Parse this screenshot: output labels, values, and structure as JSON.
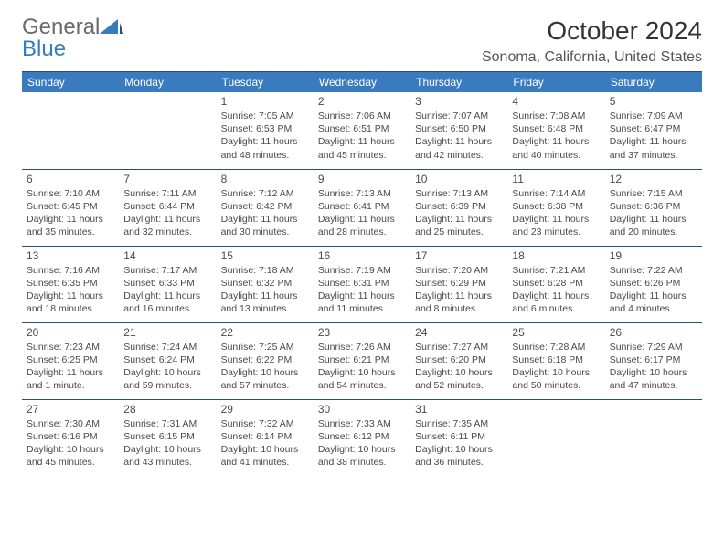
{
  "logo": {
    "text_general": "General",
    "text_blue": "Blue"
  },
  "title": "October 2024",
  "location": "Sonoma, California, United States",
  "colors": {
    "header_bg": "#3a7bbf",
    "border": "#264f7a",
    "text": "#4a4a4a",
    "title": "#333333",
    "location": "#555555"
  },
  "day_headers": [
    "Sunday",
    "Monday",
    "Tuesday",
    "Wednesday",
    "Thursday",
    "Friday",
    "Saturday"
  ],
  "weeks": [
    [
      null,
      null,
      {
        "n": "1",
        "sr": "7:05 AM",
        "ss": "6:53 PM",
        "dl": "11 hours and 48 minutes."
      },
      {
        "n": "2",
        "sr": "7:06 AM",
        "ss": "6:51 PM",
        "dl": "11 hours and 45 minutes."
      },
      {
        "n": "3",
        "sr": "7:07 AM",
        "ss": "6:50 PM",
        "dl": "11 hours and 42 minutes."
      },
      {
        "n": "4",
        "sr": "7:08 AM",
        "ss": "6:48 PM",
        "dl": "11 hours and 40 minutes."
      },
      {
        "n": "5",
        "sr": "7:09 AM",
        "ss": "6:47 PM",
        "dl": "11 hours and 37 minutes."
      }
    ],
    [
      {
        "n": "6",
        "sr": "7:10 AM",
        "ss": "6:45 PM",
        "dl": "11 hours and 35 minutes."
      },
      {
        "n": "7",
        "sr": "7:11 AM",
        "ss": "6:44 PM",
        "dl": "11 hours and 32 minutes."
      },
      {
        "n": "8",
        "sr": "7:12 AM",
        "ss": "6:42 PM",
        "dl": "11 hours and 30 minutes."
      },
      {
        "n": "9",
        "sr": "7:13 AM",
        "ss": "6:41 PM",
        "dl": "11 hours and 28 minutes."
      },
      {
        "n": "10",
        "sr": "7:13 AM",
        "ss": "6:39 PM",
        "dl": "11 hours and 25 minutes."
      },
      {
        "n": "11",
        "sr": "7:14 AM",
        "ss": "6:38 PM",
        "dl": "11 hours and 23 minutes."
      },
      {
        "n": "12",
        "sr": "7:15 AM",
        "ss": "6:36 PM",
        "dl": "11 hours and 20 minutes."
      }
    ],
    [
      {
        "n": "13",
        "sr": "7:16 AM",
        "ss": "6:35 PM",
        "dl": "11 hours and 18 minutes."
      },
      {
        "n": "14",
        "sr": "7:17 AM",
        "ss": "6:33 PM",
        "dl": "11 hours and 16 minutes."
      },
      {
        "n": "15",
        "sr": "7:18 AM",
        "ss": "6:32 PM",
        "dl": "11 hours and 13 minutes."
      },
      {
        "n": "16",
        "sr": "7:19 AM",
        "ss": "6:31 PM",
        "dl": "11 hours and 11 minutes."
      },
      {
        "n": "17",
        "sr": "7:20 AM",
        "ss": "6:29 PM",
        "dl": "11 hours and 8 minutes."
      },
      {
        "n": "18",
        "sr": "7:21 AM",
        "ss": "6:28 PM",
        "dl": "11 hours and 6 minutes."
      },
      {
        "n": "19",
        "sr": "7:22 AM",
        "ss": "6:26 PM",
        "dl": "11 hours and 4 minutes."
      }
    ],
    [
      {
        "n": "20",
        "sr": "7:23 AM",
        "ss": "6:25 PM",
        "dl": "11 hours and 1 minute."
      },
      {
        "n": "21",
        "sr": "7:24 AM",
        "ss": "6:24 PM",
        "dl": "10 hours and 59 minutes."
      },
      {
        "n": "22",
        "sr": "7:25 AM",
        "ss": "6:22 PM",
        "dl": "10 hours and 57 minutes."
      },
      {
        "n": "23",
        "sr": "7:26 AM",
        "ss": "6:21 PM",
        "dl": "10 hours and 54 minutes."
      },
      {
        "n": "24",
        "sr": "7:27 AM",
        "ss": "6:20 PM",
        "dl": "10 hours and 52 minutes."
      },
      {
        "n": "25",
        "sr": "7:28 AM",
        "ss": "6:18 PM",
        "dl": "10 hours and 50 minutes."
      },
      {
        "n": "26",
        "sr": "7:29 AM",
        "ss": "6:17 PM",
        "dl": "10 hours and 47 minutes."
      }
    ],
    [
      {
        "n": "27",
        "sr": "7:30 AM",
        "ss": "6:16 PM",
        "dl": "10 hours and 45 minutes."
      },
      {
        "n": "28",
        "sr": "7:31 AM",
        "ss": "6:15 PM",
        "dl": "10 hours and 43 minutes."
      },
      {
        "n": "29",
        "sr": "7:32 AM",
        "ss": "6:14 PM",
        "dl": "10 hours and 41 minutes."
      },
      {
        "n": "30",
        "sr": "7:33 AM",
        "ss": "6:12 PM",
        "dl": "10 hours and 38 minutes."
      },
      {
        "n": "31",
        "sr": "7:35 AM",
        "ss": "6:11 PM",
        "dl": "10 hours and 36 minutes."
      },
      null,
      null
    ]
  ],
  "labels": {
    "sunrise": "Sunrise:",
    "sunset": "Sunset:",
    "daylight": "Daylight:"
  }
}
